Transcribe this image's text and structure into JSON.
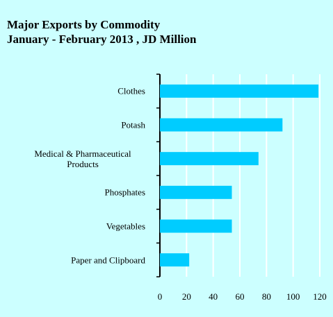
{
  "chart_data": {
    "type": "hbar",
    "title": "Major Exports by Commodity",
    "subtitle": "January - February 2013 ,  JD Million",
    "categories": [
      "Clothes",
      "Potash",
      "Medical & Pharmaceutical Products",
      "Phosphates",
      "Vegetables",
      "Paper and Clipboard"
    ],
    "values": [
      119,
      92,
      74,
      54,
      54,
      22
    ],
    "color": "#00ccff",
    "xlim": [
      0,
      120
    ],
    "xticks": [
      0,
      20,
      40,
      60,
      80,
      100,
      120
    ],
    "grid": true
  }
}
